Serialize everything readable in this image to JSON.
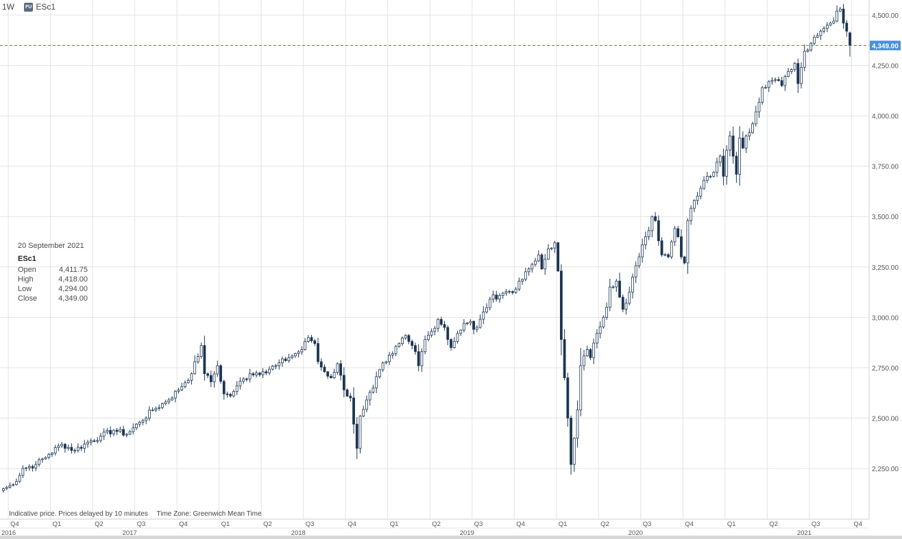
{
  "header": {
    "interval": "1W",
    "badge": "FU",
    "symbol": "ESc1"
  },
  "tooltip": {
    "date": "20 September 2021",
    "symbol": "ESc1",
    "open_label": "Open",
    "open": "4,411.75",
    "high_label": "High",
    "high": "4,418.00",
    "low_label": "Low",
    "low": "4,294.00",
    "close_label": "Close",
    "close": "4,349.00"
  },
  "footer": {
    "note": "Indicative price. Prices delayed by 10 minutes",
    "timezone": "Time Zone: Greenwich Mean Time"
  },
  "colors": {
    "candle": "#1c3553",
    "grid": "#e3e3e3",
    "last_line": "#e0393e",
    "last_label_bg": "#4a90d9"
  },
  "chart_data": {
    "type": "candlestick",
    "interval": "weekly",
    "ylim": [
      2120,
      4560
    ],
    "yticks": [
      "2,250.00",
      "2,500.00",
      "2,750.00",
      "3,000.00",
      "3,250.00",
      "3,500.00",
      "3,750.00",
      "4,000.00",
      "4,250.00",
      "4,500.00"
    ],
    "ytick_values": [
      2250,
      2500,
      2750,
      3000,
      3250,
      3500,
      3750,
      4000,
      4250,
      4500
    ],
    "last_price": 4349,
    "last_price_label": "4,349.00",
    "quarter_labels": [
      "Q4",
      "Q1",
      "Q2",
      "Q3",
      "Q4",
      "Q1",
      "Q2",
      "Q3",
      "Q4",
      "Q1",
      "Q2",
      "Q3",
      "Q4",
      "Q1",
      "Q2",
      "Q3",
      "Q4",
      "Q1",
      "Q2",
      "Q3",
      "Q4"
    ],
    "year_labels": [
      "2016",
      "2017",
      "2018",
      "2019",
      "2020",
      "2021"
    ],
    "close_anchors": [
      [
        0,
        2150
      ],
      [
        3,
        2170
      ],
      [
        6,
        2250
      ],
      [
        10,
        2270
      ],
      [
        14,
        2320
      ],
      [
        18,
        2370
      ],
      [
        22,
        2340
      ],
      [
        26,
        2380
      ],
      [
        30,
        2410
      ],
      [
        34,
        2440
      ],
      [
        38,
        2420
      ],
      [
        42,
        2480
      ],
      [
        46,
        2540
      ],
      [
        50,
        2580
      ],
      [
        54,
        2640
      ],
      [
        58,
        2720
      ],
      [
        61,
        2860
      ],
      [
        62,
        2720
      ],
      [
        64,
        2680
      ],
      [
        66,
        2760
      ],
      [
        68,
        2620
      ],
      [
        70,
        2610
      ],
      [
        72,
        2660
      ],
      [
        76,
        2720
      ],
      [
        80,
        2730
      ],
      [
        84,
        2760
      ],
      [
        88,
        2800
      ],
      [
        92,
        2840
      ],
      [
        94,
        2900
      ],
      [
        96,
        2870
      ],
      [
        97,
        2780
      ],
      [
        99,
        2730
      ],
      [
        101,
        2700
      ],
      [
        103,
        2770
      ],
      [
        105,
        2640
      ],
      [
        107,
        2600
      ],
      [
        108,
        2470
      ],
      [
        109,
        2350
      ],
      [
        110,
        2510
      ],
      [
        112,
        2590
      ],
      [
        114,
        2650
      ],
      [
        116,
        2740
      ],
      [
        118,
        2780
      ],
      [
        120,
        2820
      ],
      [
        122,
        2870
      ],
      [
        124,
        2910
      ],
      [
        125,
        2880
      ],
      [
        126,
        2860
      ],
      [
        127,
        2830
      ],
      [
        128,
        2760
      ],
      [
        130,
        2890
      ],
      [
        132,
        2930
      ],
      [
        134,
        2990
      ],
      [
        136,
        2950
      ],
      [
        137,
        2890
      ],
      [
        138,
        2850
      ],
      [
        140,
        2920
      ],
      [
        142,
        2970
      ],
      [
        144,
        2980
      ],
      [
        145,
        2940
      ],
      [
        146,
        2950
      ],
      [
        150,
        3090
      ],
      [
        154,
        3120
      ],
      [
        158,
        3140
      ],
      [
        162,
        3240
      ],
      [
        164,
        3280
      ],
      [
        165,
        3310
      ],
      [
        166,
        3240
      ],
      [
        168,
        3340
      ],
      [
        170,
        3370
      ],
      [
        171,
        3230
      ],
      [
        172,
        2890
      ],
      [
        173,
        2700
      ],
      [
        174,
        2500
      ],
      [
        175,
        2270
      ],
      [
        176,
        2400
      ],
      [
        177,
        2540
      ],
      [
        178,
        2760
      ],
      [
        180,
        2840
      ],
      [
        181,
        2800
      ],
      [
        183,
        2920
      ],
      [
        185,
        3000
      ],
      [
        186,
        3050
      ],
      [
        187,
        3150
      ],
      [
        189,
        3180
      ],
      [
        190,
        3100
      ],
      [
        191,
        3040
      ],
      [
        192,
        3070
      ],
      [
        194,
        3200
      ],
      [
        196,
        3300
      ],
      [
        197,
        3360
      ],
      [
        198,
        3400
      ],
      [
        199,
        3430
      ],
      [
        200,
        3500
      ],
      [
        201,
        3480
      ],
      [
        202,
        3380
      ],
      [
        203,
        3310
      ],
      [
        205,
        3300
      ],
      [
        207,
        3440
      ],
      [
        208,
        3400
      ],
      [
        209,
        3300
      ],
      [
        210,
        3270
      ],
      [
        211,
        3480
      ],
      [
        213,
        3580
      ],
      [
        215,
        3640
      ],
      [
        217,
        3700
      ],
      [
        219,
        3720
      ],
      [
        220,
        3770
      ],
      [
        221,
        3800
      ],
      [
        222,
        3700
      ],
      [
        223,
        3830
      ],
      [
        224,
        3900
      ],
      [
        225,
        3800
      ],
      [
        226,
        3710
      ],
      [
        227,
        3890
      ],
      [
        228,
        3840
      ],
      [
        229,
        3900
      ],
      [
        231,
        3960
      ],
      [
        232,
        4020
      ],
      [
        234,
        4140
      ],
      [
        236,
        4170
      ],
      [
        238,
        4180
      ],
      [
        240,
        4150
      ],
      [
        242,
        4220
      ],
      [
        244,
        4260
      ],
      [
        245,
        4160
      ],
      [
        247,
        4320
      ],
      [
        249,
        4360
      ],
      [
        250,
        4390
      ],
      [
        252,
        4420
      ],
      [
        254,
        4450
      ],
      [
        255,
        4460
      ],
      [
        256,
        4470
      ],
      [
        257,
        4520
      ],
      [
        258,
        4530
      ],
      [
        259,
        4460
      ],
      [
        260,
        4420
      ],
      [
        261,
        4349
      ]
    ]
  }
}
